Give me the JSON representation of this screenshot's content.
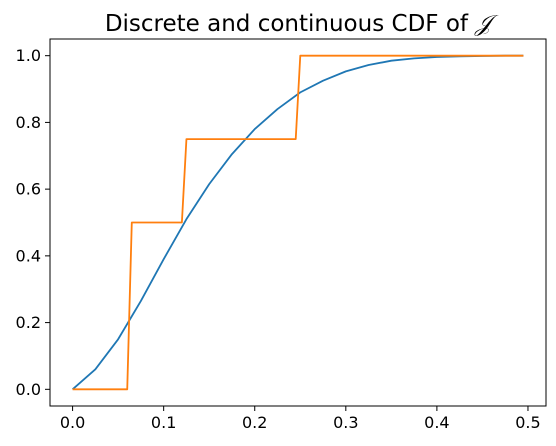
{
  "chart_data": {
    "type": "line",
    "title": "Discrete and continuous CDF of ",
    "title_symbol": "𝒥",
    "xlabel": "",
    "ylabel": "",
    "xlim": [
      -0.0248,
      0.5198
    ],
    "ylim": [
      -0.05,
      1.05
    ],
    "x_ticks": [
      0.0,
      0.1,
      0.2,
      0.3,
      0.4,
      0.5
    ],
    "x_tick_labels": [
      "0.0",
      "0.1",
      "0.2",
      "0.3",
      "0.4",
      "0.5"
    ],
    "y_ticks": [
      0.0,
      0.2,
      0.4,
      0.6,
      0.8,
      1.0
    ],
    "y_tick_labels": [
      "0.0",
      "0.2",
      "0.4",
      "0.6",
      "0.8",
      "1.0"
    ],
    "grid": false,
    "series": [
      {
        "color": "#1f77b4",
        "x": [
          0.0,
          0.025,
          0.05,
          0.075,
          0.1,
          0.125,
          0.15,
          0.175,
          0.2,
          0.225,
          0.25,
          0.275,
          0.3,
          0.325,
          0.35,
          0.375,
          0.4,
          0.425,
          0.45,
          0.475,
          0.495
        ],
        "y": [
          0.0,
          0.06,
          0.15,
          0.265,
          0.39,
          0.51,
          0.615,
          0.705,
          0.78,
          0.84,
          0.89,
          0.925,
          0.953,
          0.972,
          0.985,
          0.992,
          0.996,
          0.998,
          0.999,
          1.0,
          1.0
        ]
      },
      {
        "color": "#ff7f0e",
        "x": [
          0.0,
          0.06,
          0.065,
          0.12,
          0.125,
          0.245,
          0.25,
          0.495
        ],
        "y": [
          0.0,
          0.0,
          0.5,
          0.5,
          0.75,
          0.75,
          1.0,
          1.0
        ]
      }
    ]
  }
}
